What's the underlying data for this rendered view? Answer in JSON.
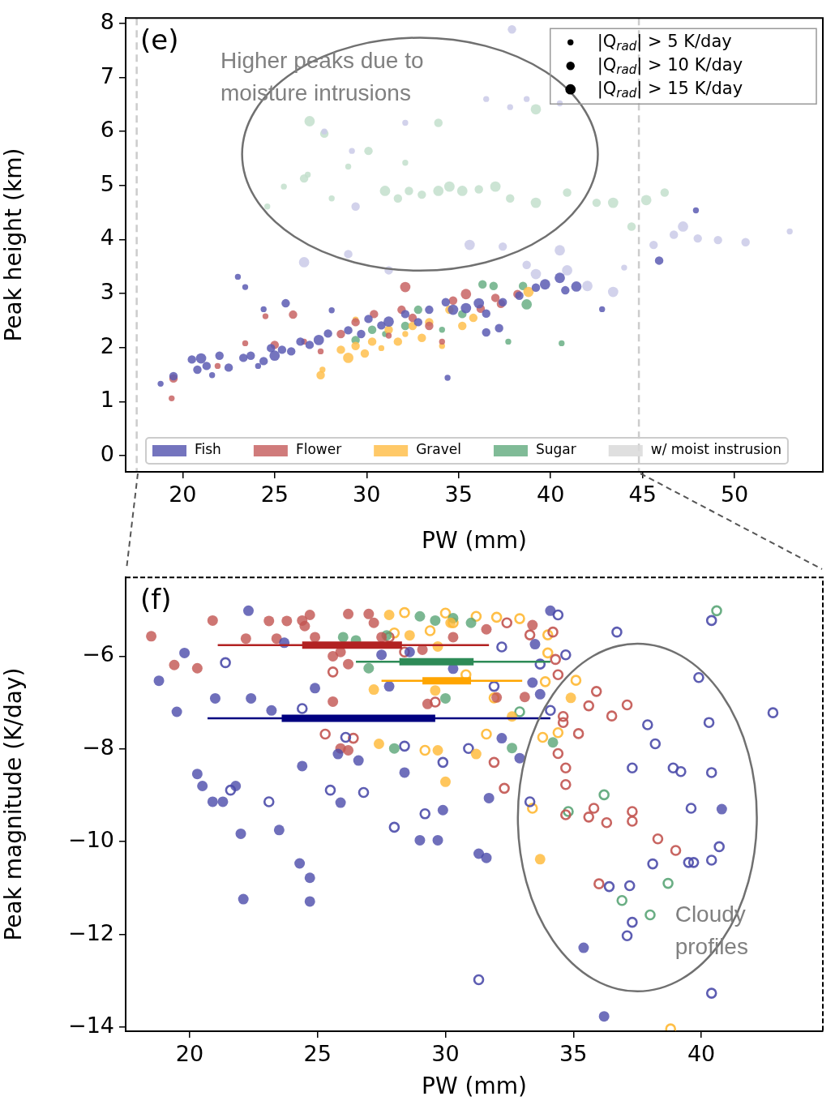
{
  "chart_data": [
    {
      "type": "bubble",
      "title": "(e)",
      "xlabel": "PW (mm)",
      "ylabel": "Peak height (km)",
      "xlim": [
        16.9,
        54.8
      ],
      "ylim": [
        -0.3,
        8.1
      ],
      "xticks": [
        20,
        25,
        30,
        35,
        40,
        45,
        50
      ],
      "yticks": [
        0,
        1,
        2,
        3,
        4,
        5,
        6,
        7,
        8
      ],
      "legend": "bottom",
      "marker": "circle",
      "size_legend": [
        {
          "value": 5,
          "label": "|Q$_{rad}$| > 5 K/day"
        },
        {
          "value": 10,
          "label": "|Q$_{rad}$| > 10 K/day"
        },
        {
          "value": 15,
          "label": "|Q$_{rad}$| > 15 K/day"
        }
      ],
      "ref_lines": [
        {
          "axis": "x",
          "value": 17.5,
          "color": "#cccccc",
          "line_style": "dashed"
        },
        {
          "axis": "x",
          "value": 44.8,
          "color": "#cccccc",
          "line_style": "dashed"
        }
      ],
      "annotations": [
        "Higher peaks due to moisture intrusions"
      ],
      "series": [
        {
          "name": "Fish",
          "color": "#5c5cb3",
          "x": [
            18.8,
            19.5,
            20.5,
            20.8,
            21.0,
            21.3,
            21.6,
            22.0,
            22.5,
            23.3,
            23.7,
            24.1,
            24.4,
            24.8,
            25.0,
            25.4,
            25.9,
            26.4,
            26.9,
            27.4,
            27.9,
            28.1,
            23.0,
            23.4,
            24.4,
            25.6,
            29.0,
            29.7,
            30.1,
            30.8,
            31.2,
            32.1,
            32.8,
            33.4,
            34.3,
            34.7,
            35.4,
            36.1,
            36.5,
            37.2,
            34.4,
            37.4,
            38.3,
            39.2,
            39.7,
            40.5,
            40.8,
            41.4,
            42.8,
            47.9,
            45.9,
            36.5
          ],
          "values": [
            1.33,
            1.47,
            1.78,
            1.59,
            1.8,
            1.66,
            1.49,
            1.85,
            1.63,
            1.81,
            1.85,
            1.66,
            1.75,
            1.99,
            1.85,
            1.96,
            1.93,
            2.11,
            2.05,
            2.14,
            2.26,
            2.69,
            3.31,
            3.12,
            2.71,
            2.82,
            2.32,
            2.25,
            2.53,
            2.41,
            2.48,
            2.62,
            2.47,
            2.7,
            2.84,
            2.7,
            2.73,
            2.82,
            2.63,
            2.36,
            1.44,
            2.84,
            2.96,
            3.11,
            3.17,
            3.29,
            3.06,
            3.13,
            2.71,
            4.54,
            3.61,
            2.28
          ],
          "sizes": [
            5,
            10,
            10,
            10,
            15,
            10,
            5,
            10,
            10,
            10,
            10,
            5,
            10,
            10,
            15,
            10,
            10,
            10,
            10,
            15,
            10,
            5,
            5,
            5,
            5,
            10,
            10,
            10,
            10,
            10,
            15,
            10,
            10,
            10,
            10,
            15,
            15,
            15,
            10,
            10,
            5,
            10,
            10,
            10,
            15,
            15,
            10,
            15,
            5,
            5,
            10,
            10
          ]
        },
        {
          "name": "Flower",
          "color": "#c86464",
          "x": [
            19.4,
            19.5,
            21.9,
            23.4,
            24.5,
            25.0,
            26.0,
            26.6,
            27.5,
            28.6,
            29.4,
            30.4,
            31.2,
            31.9,
            32.5,
            33.4,
            34.1,
            34.7,
            35.4,
            36.2,
            37.0,
            37.3,
            38.2,
            32.1
          ],
          "values": [
            1.06,
            1.43,
            1.66,
            2.08,
            2.58,
            2.05,
            2.61,
            2.11,
            1.93,
            2.25,
            2.47,
            2.62,
            2.22,
            2.7,
            2.55,
            2.4,
            2.11,
            2.87,
            2.99,
            2.72,
            2.92,
            2.81,
            2.99,
            3.12
          ],
          "sizes": [
            5,
            10,
            5,
            5,
            5,
            10,
            10,
            5,
            5,
            10,
            10,
            10,
            5,
            10,
            10,
            10,
            5,
            10,
            15,
            10,
            10,
            10,
            10,
            15
          ]
        },
        {
          "name": "Gravel",
          "color": "#ffc04d",
          "x": [
            27.5,
            27.6,
            28.6,
            29.0,
            29.4,
            29.9,
            30.3,
            30.8,
            31.2,
            31.7,
            32.1,
            32.5,
            33.0,
            33.4,
            34.1,
            34.5,
            35.2,
            35.8,
            38.8,
            29.4
          ],
          "values": [
            1.49,
            1.59,
            1.96,
            1.81,
            2.03,
            1.89,
            2.11,
            1.99,
            2.33,
            2.11,
            2.25,
            2.4,
            2.18,
            2.47,
            2.03,
            2.7,
            2.4,
            2.55,
            3.03,
            2.52
          ],
          "sizes": [
            10,
            5,
            10,
            15,
            10,
            10,
            10,
            5,
            10,
            10,
            5,
            10,
            10,
            10,
            5,
            10,
            10,
            10,
            15,
            5
          ]
        },
        {
          "name": "Sugar",
          "color": "#6aaf85",
          "x": [
            29.4,
            30.3,
            31.0,
            32.1,
            32.8,
            34.1,
            35.2,
            36.3,
            36.9,
            37.7,
            38.5,
            38.7,
            40.6
          ],
          "values": [
            2.14,
            2.33,
            2.25,
            2.4,
            2.7,
            2.33,
            2.62,
            3.17,
            3.14,
            2.11,
            3.14,
            2.8,
            2.08
          ],
          "sizes": [
            10,
            10,
            5,
            10,
            10,
            5,
            10,
            10,
            10,
            5,
            10,
            15,
            5
          ]
        },
        {
          "name": "w/ moist instrusion",
          "color": "#d9d9d9",
          "x": [
            26.9,
            27.7,
            24.6,
            25.5,
            26.6,
            28.1,
            29.0,
            30.1,
            31.0,
            31.7,
            32.1,
            32.3,
            33.0,
            33.9,
            33.9,
            34.5,
            35.2,
            36.1,
            37.0,
            37.8,
            39.2,
            39.2,
            40.9,
            42.5,
            43.4,
            44.4,
            45.2,
            46.2,
            26.8,
            27.7,
            29.2,
            29.4,
            32.1,
            36.5,
            37.8,
            38.7,
            40.5,
            37.9,
            26.6,
            29.0,
            31.2,
            35.6,
            40.5,
            42.0,
            43.4,
            39.2,
            40.9,
            45.6,
            46.7,
            47.2,
            48.0,
            49.1,
            50.6,
            53.0,
            44.0,
            38.7,
            37.4
          ],
          "values": [
            6.19,
            5.96,
            4.61,
            4.98,
            5.13,
            4.76,
            5.35,
            5.64,
            4.9,
            4.76,
            5.42,
            4.9,
            4.83,
            6.16,
            4.9,
            4.98,
            4.9,
            4.93,
            4.98,
            4.76,
            4.68,
            6.41,
            4.87,
            4.68,
            4.68,
            4.24,
            4.73,
            4.87,
            5.2,
            6.0,
            5.64,
            4.61,
            6.16,
            6.6,
            6.45,
            6.6,
            6.52,
            7.89,
            3.58,
            3.73,
            3.43,
            3.9,
            3.8,
            3.14,
            3.03,
            3.36,
            3.43,
            3.9,
            4.09,
            4.24,
            4.02,
            3.99,
            3.95,
            4.15,
            3.48,
            3.53,
            3.87
          ],
          "sizes": [
            15,
            10,
            5,
            5,
            10,
            5,
            5,
            10,
            15,
            10,
            5,
            10,
            10,
            10,
            15,
            15,
            15,
            10,
            15,
            10,
            15,
            15,
            10,
            10,
            15,
            10,
            15,
            10,
            5,
            5,
            5,
            10,
            5,
            5,
            5,
            5,
            5,
            10,
            15,
            10,
            10,
            15,
            15,
            15,
            15,
            15,
            15,
            10,
            10,
            15,
            10,
            10,
            10,
            5,
            5,
            10,
            10
          ],
          "colors": [
            "#c3dfcd",
            "#c3dfcd",
            "#c3dfcd",
            "#c3dfcd",
            "#c3dfcd",
            "#c3dfcd",
            "#c3dfcd",
            "#c3dfcd",
            "#c3dfcd",
            "#c3dfcd",
            "#c3dfcd",
            "#c3dfcd",
            "#c3dfcd",
            "#c3dfcd",
            "#c3dfcd",
            "#c3dfcd",
            "#c3dfcd",
            "#c3dfcd",
            "#c3dfcd",
            "#c3dfcd",
            "#c3dfcd",
            "#c3dfcd",
            "#c3dfcd",
            "#c3dfcd",
            "#c3dfcd",
            "#c3dfcd",
            "#c3dfcd",
            "#c3dfcd",
            "#c3dfcd",
            "#cacae8",
            "#cacae8",
            "#cacae8",
            "#cacae8",
            "#cacae8",
            "#cacae8",
            "#cacae8",
            "#cacae8",
            "#cacae8",
            "#cacae8",
            "#cacae8",
            "#cacae8",
            "#cacae8",
            "#cacae8",
            "#cacae8",
            "#cacae8",
            "#cacae8",
            "#cacae8",
            "#cacae8",
            "#cacae8",
            "#cacae8",
            "#cacae8",
            "#cacae8",
            "#cacae8",
            "#cacae8",
            "#cacae8",
            "#cacae8",
            "#cacae8"
          ]
        }
      ]
    },
    {
      "type": "scatter",
      "title": "(f)",
      "xlabel": "PW (mm)",
      "ylabel": "Peak magnitude (K/day)",
      "xlim": [
        17.5,
        44.75
      ],
      "ylim": [
        -14.09,
        -4.3
      ],
      "xticks": [
        20,
        25,
        30,
        35,
        40
      ],
      "yticks": [
        {
          "value": -6,
          "label": "−6"
        },
        {
          "value": -8,
          "label": "−8"
        },
        {
          "value": -10,
          "label": "−10"
        },
        {
          "value": -12,
          "label": "−12"
        },
        {
          "value": -14,
          "label": "−14"
        }
      ],
      "marker": "circle",
      "annotations": [
        "Cloudy profiles"
      ],
      "series": [
        {
          "type": "line",
          "marker": "none",
          "color": "#b22222",
          "x": [
            21.1,
            31.7
          ],
          "values": [
            -5.76,
            -5.76
          ]
        },
        {
          "type": "line",
          "marker": "none",
          "color": "#b22222",
          "x": [
            24.4,
            28.3
          ],
          "values": [
            -5.76,
            -5.76
          ]
        },
        {
          "type": "line",
          "marker": "none",
          "color": "#2e8b57",
          "x": [
            26.5,
            34.1
          ],
          "values": [
            -6.12,
            -6.12
          ]
        },
        {
          "type": "line",
          "marker": "none",
          "color": "#2e8b57",
          "x": [
            28.2,
            31.1
          ],
          "values": [
            -6.12,
            -6.12
          ]
        },
        {
          "type": "line",
          "marker": "none",
          "color": "#ffa500",
          "x": [
            27.5,
            33.0
          ],
          "values": [
            -6.53,
            -6.53
          ]
        },
        {
          "type": "line",
          "marker": "none",
          "color": "#ffa500",
          "x": [
            29.1,
            31.0
          ],
          "values": [
            -6.53,
            -6.53
          ]
        },
        {
          "type": "line",
          "marker": "none",
          "color": "#000080",
          "x": [
            20.7,
            34.1
          ],
          "values": [
            -7.34,
            -7.34
          ]
        },
        {
          "type": "line",
          "marker": "none",
          "color": "#000080",
          "x": [
            23.6,
            29.6
          ],
          "values": [
            -7.34,
            -7.34
          ]
        },
        {
          "color": "#4b4baa",
          "x": [
            18.8,
            19.5,
            19.8,
            20.3,
            20.5,
            20.9,
            21.0,
            21.3,
            21.8,
            22.0,
            22.1,
            22.3,
            22.4,
            23.2,
            23.5,
            23.7,
            24.3,
            24.4,
            24.7,
            24.7,
            24.9,
            25.8,
            25.9,
            26.6,
            27.5,
            27.8,
            28.4,
            28.6,
            29.0,
            29.7,
            29.9,
            30.3,
            31.3,
            31.6,
            32.2,
            32.9,
            33.4,
            33.7,
            34.1,
            33.5,
            35.4,
            36.2,
            40.8,
            31.7
          ],
          "values": [
            -6.53,
            -7.2,
            -5.93,
            -8.54,
            -8.8,
            -9.14,
            -6.91,
            -9.14,
            -8.8,
            -9.83,
            -11.24,
            -5.02,
            -6.91,
            -7.17,
            -9.75,
            -5.71,
            -10.47,
            -8.37,
            -10.78,
            -11.29,
            -6.69,
            -8.11,
            -9.16,
            -8.25,
            -5.97,
            -6.65,
            -8.51,
            -5.91,
            -9.97,
            -9.97,
            -9.32,
            -6.27,
            -10.26,
            -10.35,
            -7.77,
            -8.2,
            -6.57,
            -6.82,
            -5.02,
            -5.74,
            -12.29,
            -13.77,
            -9.3,
            -9.06
          ]
        },
        {
          "color": "#c25450",
          "x": [
            18.5,
            19.4,
            20.3,
            20.9,
            22.2,
            23.1,
            23.4,
            23.8,
            24.4,
            24.5,
            24.7,
            24.9,
            25.9,
            26.2,
            25.6,
            25.6,
            25.9,
            26.2,
            26.2,
            27.0,
            27.2,
            27.5,
            29.1,
            29.3,
            30.3,
            31.6,
            32.0,
            33.4,
            33.1
          ],
          "values": [
            -5.57,
            -6.19,
            -6.26,
            -5.23,
            -5.62,
            -5.24,
            -5.62,
            -5.24,
            -5.23,
            -5.35,
            -5.11,
            -5.59,
            -5.91,
            -6.17,
            -6.0,
            -6.98,
            -7.99,
            -8.03,
            -5.09,
            -5.09,
            -5.28,
            -5.59,
            -5.86,
            -7.03,
            -5.59,
            -5.42,
            -6.89,
            -5.33,
            -6.88
          ]
        },
        {
          "color": "#ffb833",
          "x": [
            27.8,
            28.6,
            29.6,
            29.7,
            30.2,
            27.4,
            29.7,
            30.0,
            27.2,
            31.2,
            33.7,
            34.9,
            32.6
          ],
          "values": [
            -5.11,
            -5.55,
            -6.74,
            -5.79,
            -5.28,
            -7.89,
            -8.03,
            -8.71,
            -6.72,
            -8.11,
            -10.38,
            -6.9,
            -7.3
          ]
        },
        {
          "color": "#5aa577",
          "x": [
            26.0,
            26.5,
            27.7,
            27.0,
            28.0,
            29.0,
            29.6,
            30.3,
            31.0,
            30.0,
            34.2,
            32.6
          ],
          "values": [
            -5.59,
            -5.66,
            -5.55,
            -6.26,
            -7.99,
            -5.14,
            -5.23,
            -5.18,
            -5.28,
            -6.91,
            -7.86,
            -7.98
          ]
        },
        {
          "color": "#4b4baa",
          "x": [
            21.4,
            21.6,
            23.1,
            24.4,
            25.5,
            26.8,
            28.4,
            26.1,
            28.0,
            29.2,
            29.9,
            30.9,
            31.9,
            32.2,
            33.7,
            34.4,
            34.7,
            34.1,
            33.3,
            31.3,
            36.7,
            37.9,
            38.2,
            37.3,
            38.9,
            39.2,
            40.3,
            40.4,
            39.6,
            40.7,
            39.5,
            39.7,
            40.4,
            38.1,
            36.4,
            37.2,
            37.3,
            37.1,
            40.4,
            40.4,
            42.8,
            39.9
          ],
          "values": [
            -6.14,
            -8.89,
            -9.14,
            -7.13,
            -8.89,
            -8.94,
            -7.94,
            -7.75,
            -9.69,
            -9.4,
            -8.29,
            -7.99,
            -6.65,
            -5.8,
            -6.17,
            -5.11,
            -5.97,
            -7.17,
            -9.14,
            -12.98,
            -5.48,
            -7.48,
            -7.89,
            -8.41,
            -8.41,
            -8.49,
            -7.43,
            -8.51,
            -9.28,
            -10.11,
            -10.45,
            -10.45,
            -10.4,
            -10.48,
            -10.97,
            -10.95,
            -11.74,
            -12.03,
            -13.27,
            -5.23,
            -7.22,
            -6.46
          ]
        },
        {
          "color": "#c25450",
          "x": [
            25.6,
            25.3,
            26.4,
            27.8,
            28.4,
            29.6,
            32.4,
            33.3,
            34.2,
            34.3,
            34.4,
            31.9,
            32.3,
            35.9,
            35.6,
            36.5,
            37.1,
            34.6,
            34.6,
            35.2,
            34.4,
            34.7,
            34.7,
            35.8,
            35.6,
            36.3,
            37.3,
            37.3,
            38.3,
            39.0,
            36.0,
            34.7
          ],
          "values": [
            -6.34,
            -7.68,
            -7.77,
            -5.59,
            -5.91,
            -6.99,
            -5.28,
            -5.54,
            -5.48,
            -6.07,
            -6.4,
            -8.29,
            -8.85,
            -6.76,
            -7.07,
            -7.29,
            -7.05,
            -7.3,
            -7.43,
            -7.67,
            -8.1,
            -8.41,
            -8.77,
            -9.28,
            -9.47,
            -9.59,
            -9.35,
            -9.56,
            -9.94,
            -10.19,
            -10.91,
            -9.42
          ]
        },
        {
          "color": "#ffb833",
          "x": [
            28.4,
            28.0,
            29.4,
            30.0,
            30.3,
            31.2,
            32.0,
            32.9,
            34.0,
            34.0,
            33.9,
            35.1,
            33.8,
            34.4,
            29.2,
            31.6,
            33.4,
            38.8,
            30.8,
            31.9
          ],
          "values": [
            -5.06,
            -5.5,
            -5.45,
            -5.07,
            -5.28,
            -5.14,
            -5.16,
            -5.19,
            -5.54,
            -5.93,
            -6.55,
            -6.52,
            -7.75,
            -7.65,
            -8.03,
            -7.68,
            -9.28,
            -14.04,
            -6.4,
            -6.9
          ]
        },
        {
          "color": "#5aa577",
          "x": [
            40.6,
            36.2,
            36.9,
            38.7,
            38.0,
            34.8,
            32.9
          ],
          "values": [
            -5.02,
            -8.99,
            -11.27,
            -10.9,
            -11.58,
            -9.35,
            -7.2
          ]
        }
      ]
    }
  ]
}
